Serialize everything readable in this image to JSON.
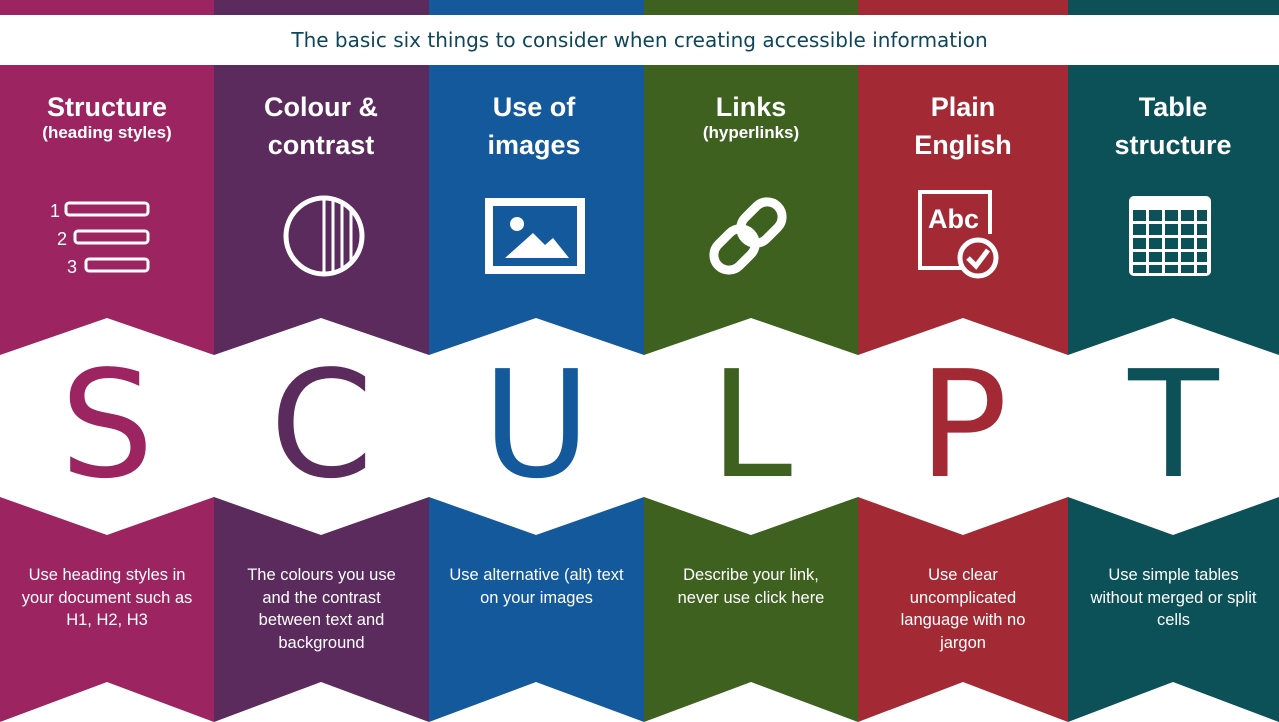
{
  "header": {
    "title": "The basic six things to consider when creating accessible information"
  },
  "columns": [
    {
      "key": "structure",
      "title": "Structure",
      "subtitle": "(heading styles)",
      "letter": "S",
      "description": "Use heading styles in your document such as H1, H2, H3",
      "color": "#9c2460",
      "icon": "numbered-list-icon",
      "icon_numbers": [
        "1",
        "2",
        "3"
      ]
    },
    {
      "key": "colour",
      "title": "Colour  & contrast",
      "subtitle": "",
      "letter": "C",
      "description": "The colours you use and the contrast between text and background",
      "color": "#5a2b5c",
      "icon": "contrast-circle-icon"
    },
    {
      "key": "images",
      "title": "Use of images",
      "subtitle": "",
      "letter": "U",
      "description": "Use alternative (alt) text on your images",
      "color": "#13599c",
      "icon": "image-icon"
    },
    {
      "key": "links",
      "title": "Links",
      "subtitle": "(hyperlinks)",
      "letter": "L",
      "description": "Describe your link, never use click here",
      "color": "#3f6120",
      "icon": "link-chain-icon"
    },
    {
      "key": "plain-english",
      "title": "Plain English",
      "subtitle": "",
      "letter": "P",
      "description": "Use clear uncomplicated language with no jargon",
      "color": "#a32a35",
      "icon": "abc-check-icon",
      "icon_text": "Abc"
    },
    {
      "key": "table",
      "title": "Table structure",
      "subtitle": "",
      "letter": "T",
      "description": "Use simple tables without merged or split cells",
      "color": "#0c5058",
      "icon": "table-grid-icon"
    }
  ]
}
